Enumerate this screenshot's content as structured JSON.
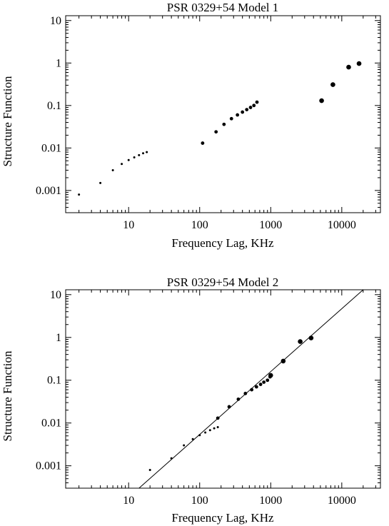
{
  "chart_data": [
    {
      "type": "scatter",
      "title": "PSR 0329+54 Model 1",
      "xlabel": "Frequency Lag, KHz",
      "ylabel": "Structure Function",
      "x_scale": "log",
      "y_scale": "log",
      "xlim": [
        1.3,
        35000
      ],
      "ylim": [
        0.0003,
        13
      ],
      "x_ticks": [
        "10",
        "100",
        "1000",
        "10000"
      ],
      "y_ticks": [
        "0.001",
        "0.01",
        "0.1",
        "1",
        "10"
      ],
      "series": [
        {
          "marker": "tiny",
          "x": [
            2,
            4,
            6,
            8,
            10,
            12,
            14,
            16,
            18
          ],
          "y": [
            0.0008,
            0.0015,
            0.003,
            0.0042,
            0.0052,
            0.006,
            0.0068,
            0.0075,
            0.008
          ]
        },
        {
          "marker": "small",
          "x": [
            110,
            170,
            220,
            280,
            340,
            400,
            460,
            520,
            580,
            640
          ],
          "y": [
            0.013,
            0.024,
            0.036,
            0.049,
            0.06,
            0.07,
            0.08,
            0.09,
            0.1,
            0.12
          ]
        },
        {
          "marker": "large",
          "x": [
            5200,
            7500,
            12500,
            17500
          ],
          "y": [
            0.13,
            0.31,
            0.8,
            0.97
          ]
        }
      ]
    },
    {
      "type": "scatter",
      "title": "PSR 0329+54 Model 2",
      "xlabel": "Frequency Lag, KHz",
      "ylabel": "Structure Function",
      "x_scale": "log",
      "y_scale": "log",
      "xlim": [
        1.3,
        35000
      ],
      "ylim": [
        0.0003,
        13
      ],
      "x_ticks": [
        "10",
        "100",
        "1000",
        "10000"
      ],
      "y_ticks": [
        "0.001",
        "0.01",
        "0.1",
        "1",
        "10"
      ],
      "series": [
        {
          "marker": "tiny",
          "x": [
            20,
            40,
            60,
            80,
            100,
            120,
            140,
            160,
            180
          ],
          "y": [
            0.0008,
            0.0015,
            0.003,
            0.0042,
            0.0052,
            0.006,
            0.0068,
            0.0075,
            0.008
          ]
        },
        {
          "marker": "small",
          "x": [
            180,
            260,
            350,
            440,
            540,
            630,
            720,
            800,
            900,
            980
          ],
          "y": [
            0.013,
            0.024,
            0.036,
            0.049,
            0.06,
            0.07,
            0.08,
            0.09,
            0.1,
            0.12
          ]
        },
        {
          "marker": "large",
          "x": [
            1000,
            1500,
            2600,
            3700
          ],
          "y": [
            0.13,
            0.28,
            0.8,
            0.97
          ]
        }
      ],
      "fit_line": {
        "x": [
          14,
          20000
        ],
        "y": [
          0.0003,
          13
        ]
      }
    }
  ]
}
